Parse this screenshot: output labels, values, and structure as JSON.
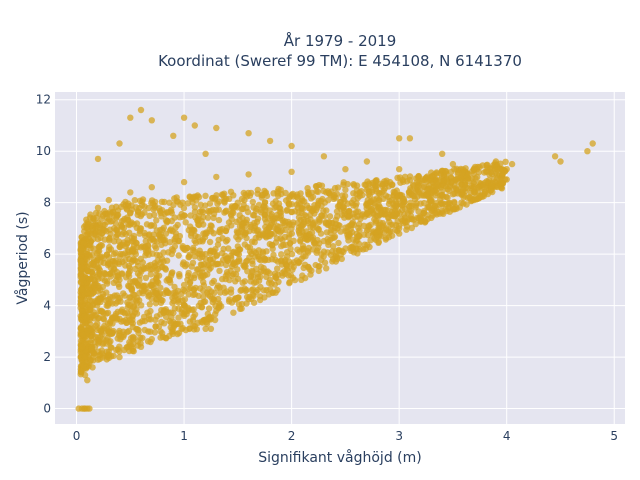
{
  "chart_data": {
    "type": "scatter",
    "title_line1": "År 1979 - 2019",
    "title_line2": "Koordinat (Sweref 99 TM): E 454108, N 6141370",
    "xlabel": "Signifikant våghöjd (m)",
    "ylabel": "Vågperiod (s)",
    "xlim": [
      -0.2,
      5.1
    ],
    "ylim": [
      -0.6,
      12.3
    ],
    "xticks": [
      0,
      1,
      2,
      3,
      4,
      5
    ],
    "yticks": [
      0,
      2,
      4,
      6,
      8,
      10,
      12
    ],
    "grid": true,
    "legend": "none",
    "colors": {
      "marker": "#d4a322",
      "plot_bg": "#e5e5f0",
      "grid": "#ffffff",
      "text": "#2a3f5f"
    },
    "series": [
      {
        "marker_opacity": 0.75,
        "points": [
          [
            0.02,
            0.0
          ],
          [
            0.05,
            0.0
          ],
          [
            0.07,
            0.0
          ],
          [
            0.08,
            0.0
          ],
          [
            0.1,
            0.0
          ],
          [
            0.12,
            0.0
          ],
          [
            0.05,
            2.4
          ],
          [
            0.08,
            1.3
          ],
          [
            0.1,
            1.1
          ],
          [
            0.15,
            1.6
          ],
          [
            0.2,
            1.9
          ],
          [
            0.3,
            2.1
          ],
          [
            0.5,
            2.5
          ],
          [
            0.7,
            2.7
          ],
          [
            0.9,
            3.0
          ],
          [
            1.1,
            3.2
          ],
          [
            1.3,
            3.8
          ],
          [
            1.5,
            4.3
          ],
          [
            1.8,
            5.0
          ],
          [
            2.0,
            5.6
          ],
          [
            2.3,
            6.1
          ],
          [
            2.6,
            6.5
          ],
          [
            2.8,
            6.9
          ],
          [
            3.0,
            7.0
          ],
          [
            3.2,
            7.3
          ],
          [
            3.5,
            7.8
          ],
          [
            3.8,
            8.4
          ],
          [
            4.0,
            8.9
          ],
          [
            0.1,
            3.0
          ],
          [
            0.1,
            4.5
          ],
          [
            0.1,
            6.0
          ],
          [
            0.15,
            7.0
          ],
          [
            0.2,
            7.8
          ],
          [
            0.3,
            8.1
          ],
          [
            0.5,
            8.4
          ],
          [
            0.7,
            8.6
          ],
          [
            1.0,
            8.8
          ],
          [
            1.3,
            9.0
          ],
          [
            1.6,
            9.1
          ],
          [
            2.0,
            9.2
          ],
          [
            2.5,
            9.3
          ],
          [
            3.0,
            9.3
          ],
          [
            3.5,
            9.5
          ],
          [
            3.9,
            9.6
          ],
          [
            0.2,
            9.7
          ],
          [
            0.4,
            10.3
          ],
          [
            0.5,
            11.3
          ],
          [
            0.6,
            11.6
          ],
          [
            0.7,
            11.2
          ],
          [
            1.0,
            11.3
          ],
          [
            1.1,
            11.0
          ],
          [
            1.3,
            10.9
          ],
          [
            1.6,
            10.7
          ],
          [
            1.8,
            10.4
          ],
          [
            2.0,
            10.2
          ],
          [
            3.0,
            10.5
          ],
          [
            3.1,
            10.5
          ],
          [
            0.9,
            10.6
          ],
          [
            1.2,
            9.9
          ],
          [
            2.3,
            9.8
          ],
          [
            2.7,
            9.6
          ],
          [
            3.4,
            9.9
          ],
          [
            4.0,
            9.3
          ],
          [
            4.05,
            9.5
          ],
          [
            4.45,
            9.8
          ],
          [
            4.5,
            9.6
          ],
          [
            4.75,
            10.0
          ],
          [
            4.8,
            10.3
          ],
          [
            1.5,
            4.3
          ],
          [
            0.3,
            2.2
          ],
          [
            0.4,
            2.0
          ],
          [
            0.6,
            2.4
          ],
          [
            1.2,
            3.1
          ],
          [
            1.25,
            3.1
          ],
          [
            3.0,
            6.8
          ],
          [
            0.12,
            5.0
          ],
          [
            0.08,
            2.0
          ],
          [
            0.09,
            3.5
          ],
          [
            0.1,
            5.5
          ],
          [
            0.35,
            6.5
          ],
          [
            0.6,
            7.0
          ],
          [
            1.0,
            7.5
          ],
          [
            1.5,
            8.0
          ],
          [
            2.0,
            8.3
          ],
          [
            2.5,
            8.5
          ],
          [
            0.4,
            5.0
          ],
          [
            0.8,
            5.5
          ],
          [
            1.2,
            6.0
          ],
          [
            1.8,
            6.8
          ],
          [
            2.2,
            7.2
          ],
          [
            2.7,
            7.6
          ],
          [
            3.3,
            8.0
          ],
          [
            3.7,
            8.6
          ],
          [
            0.25,
            3.5
          ],
          [
            0.5,
            4.0
          ],
          [
            0.8,
            4.2
          ],
          [
            1.0,
            4.8
          ],
          [
            1.4,
            5.3
          ],
          [
            1.7,
            5.8
          ],
          [
            2.1,
            6.2
          ],
          [
            2.4,
            6.9
          ],
          [
            2.9,
            7.4
          ],
          [
            3.3,
            7.7
          ],
          [
            3.6,
            8.2
          ]
        ]
      }
    ]
  }
}
